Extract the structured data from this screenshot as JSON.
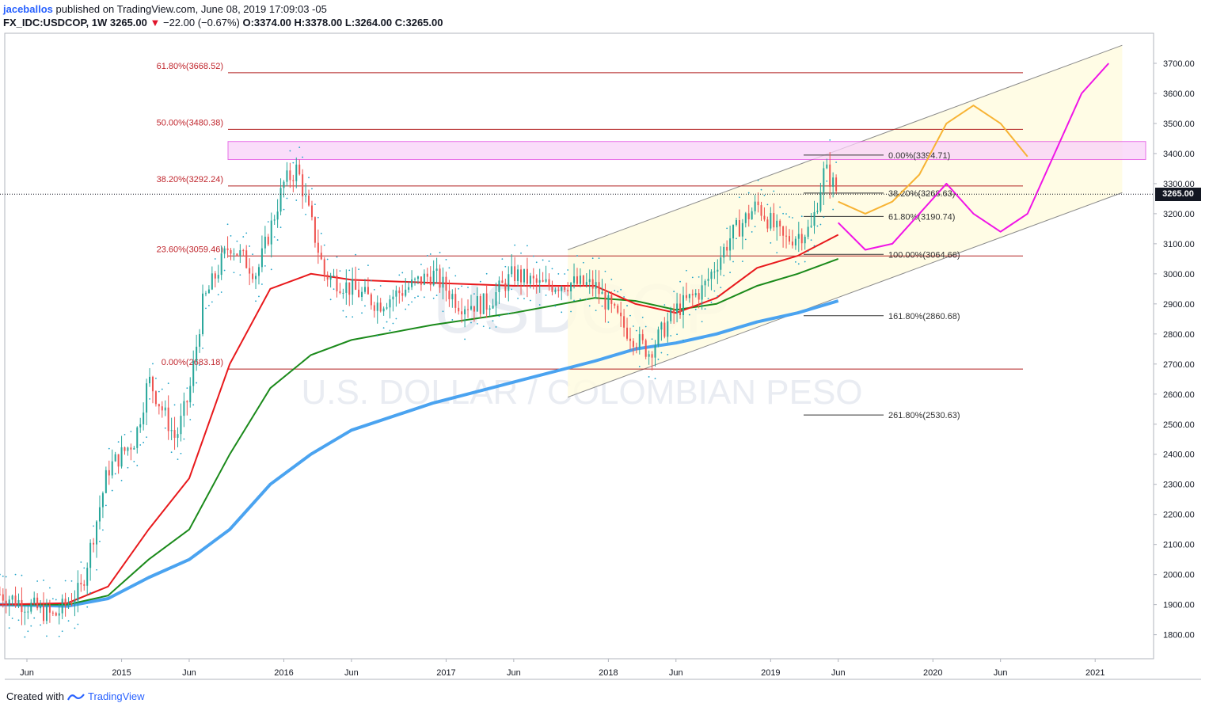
{
  "header": {
    "author": "jaceballos",
    "published": "published on TradingView.com, June 08, 2019 17:09:03 -05",
    "symbol": "FX_IDC:USDCOP, 1W",
    "last": "3265.00",
    "change": "−22.00 (−0.67%)",
    "ohlc_o": "O:3374.00",
    "ohlc_h": "H:3378.00",
    "ohlc_l": "L:3264.00",
    "ohlc_c": "C:3265.00"
  },
  "footer": {
    "created_with": "Created with",
    "brand": "TradingView"
  },
  "watermark": {
    "symbol": "USDCOP",
    "description": "U.S. DOLLAR / COLOMBIAN PESO"
  },
  "last_price_tag": "3265.00",
  "colors": {
    "candle_up": "#26a69a",
    "candle_down": "#ef5350",
    "ma_fast": "#e8191c",
    "ma_mid": "#1b8a1b",
    "ma_slow": "#4aa3f0",
    "fib_line": "#b22222",
    "channel_fill": "#fffbe0",
    "resistance_box": "#f9d2f9",
    "projection_orange": "#f7b334",
    "projection_magenta": "#f014e6"
  },
  "chart_data": {
    "type": "candlestick",
    "ylim": [
      1720,
      3800
    ],
    "yticks": [
      1800,
      1900,
      2000,
      2100,
      2200,
      2300,
      2400,
      2500,
      2600,
      2700,
      2800,
      2900,
      3000,
      3100,
      3200,
      3300,
      3400,
      3500,
      3600,
      3700
    ],
    "xticks": [
      {
        "label": "Jun",
        "date": "2014-06"
      },
      {
        "label": "2015",
        "date": "2015-01"
      },
      {
        "label": "Jun",
        "date": "2015-06"
      },
      {
        "label": "2016",
        "date": "2016-01"
      },
      {
        "label": "Jun",
        "date": "2016-06"
      },
      {
        "label": "2017",
        "date": "2017-01"
      },
      {
        "label": "Jun",
        "date": "2017-06"
      },
      {
        "label": "2018",
        "date": "2018-01"
      },
      {
        "label": "Jun",
        "date": "2018-06"
      },
      {
        "label": "2019",
        "date": "2019-01"
      },
      {
        "label": "Jun",
        "date": "2019-06"
      },
      {
        "label": "2020",
        "date": "2020-01"
      },
      {
        "label": "Jun",
        "date": "2020-06"
      },
      {
        "label": "2021",
        "date": "2021-01"
      }
    ],
    "price_path": [
      [
        "2014-04",
        1935
      ],
      [
        "2014-06",
        1900
      ],
      [
        "2014-08",
        1860
      ],
      [
        "2014-10",
        1950
      ],
      [
        "2014-12",
        2350
      ],
      [
        "2015-02",
        2450
      ],
      [
        "2015-03",
        2650
      ],
      [
        "2015-05",
        2450
      ],
      [
        "2015-06",
        2600
      ],
      [
        "2015-07",
        2900
      ],
      [
        "2015-09",
        3100
      ],
      [
        "2015-11",
        3000
      ],
      [
        "2016-01",
        3300
      ],
      [
        "2016-02",
        3350
      ],
      [
        "2016-04",
        3000
      ],
      [
        "2016-06",
        2950
      ],
      [
        "2016-08",
        2900
      ],
      [
        "2016-10",
        2950
      ],
      [
        "2016-12",
        3000
      ],
      [
        "2017-02",
        2900
      ],
      [
        "2017-04",
        2900
      ],
      [
        "2017-06",
        3000
      ],
      [
        "2017-08",
        2960
      ],
      [
        "2017-10",
        2970
      ],
      [
        "2017-12",
        2960
      ],
      [
        "2018-02",
        2830
      ],
      [
        "2018-04",
        2740
      ],
      [
        "2018-06",
        2880
      ],
      [
        "2018-08",
        2950
      ],
      [
        "2018-10",
        3120
      ],
      [
        "2018-12",
        3230
      ],
      [
        "2019-02",
        3110
      ],
      [
        "2019-04",
        3150
      ],
      [
        "2019-05",
        3350
      ],
      [
        "2019-06",
        3265
      ]
    ],
    "fib_retracement_major": [
      {
        "label": "61.80%(3668.52)",
        "price": 3668.52
      },
      {
        "label": "50.00%(3480.38)",
        "price": 3480.38
      },
      {
        "label": "38.20%(3292.24)",
        "price": 3292.24
      },
      {
        "label": "23.60%(3059.46)",
        "price": 3059.46
      },
      {
        "label": "0.00%(2683.18)",
        "price": 2683.18
      }
    ],
    "fib_extension_minor": [
      {
        "label": "0.00%(3394.71)",
        "price": 3394.71
      },
      {
        "label": "38.20%(3268.63)",
        "price": 3268.63
      },
      {
        "label": "61.80%(3190.74)",
        "price": 3190.74
      },
      {
        "label": "100.00%(3064.66)",
        "price": 3064.66
      },
      {
        "label": "161.80%(2860.68)",
        "price": 2860.68
      },
      {
        "label": "261.80%(2530.63)",
        "price": 2530.63
      }
    ],
    "resistance_zone": [
      3380,
      3440
    ],
    "ma_fast": [
      [
        "2014-04",
        1900
      ],
      [
        "2014-09",
        1905
      ],
      [
        "2014-12",
        1960
      ],
      [
        "2015-03",
        2150
      ],
      [
        "2015-06",
        2320
      ],
      [
        "2015-09",
        2700
      ],
      [
        "2015-12",
        2950
      ],
      [
        "2016-03",
        3000
      ],
      [
        "2016-06",
        2980
      ],
      [
        "2016-12",
        2970
      ],
      [
        "2017-06",
        2960
      ],
      [
        "2017-12",
        2960
      ],
      [
        "2018-03",
        2900
      ],
      [
        "2018-06",
        2870
      ],
      [
        "2018-09",
        2920
      ],
      [
        "2018-12",
        3020
      ],
      [
        "2019-03",
        3060
      ],
      [
        "2019-06",
        3130
      ]
    ],
    "ma_mid": [
      [
        "2014-04",
        1900
      ],
      [
        "2014-09",
        1900
      ],
      [
        "2014-12",
        1930
      ],
      [
        "2015-03",
        2050
      ],
      [
        "2015-06",
        2150
      ],
      [
        "2015-09",
        2400
      ],
      [
        "2015-12",
        2620
      ],
      [
        "2016-03",
        2730
      ],
      [
        "2016-06",
        2780
      ],
      [
        "2016-12",
        2830
      ],
      [
        "2017-06",
        2870
      ],
      [
        "2017-12",
        2920
      ],
      [
        "2018-03",
        2910
      ],
      [
        "2018-06",
        2880
      ],
      [
        "2018-09",
        2900
      ],
      [
        "2018-12",
        2960
      ],
      [
        "2019-03",
        3000
      ],
      [
        "2019-06",
        3050
      ]
    ],
    "ma_slow": [
      [
        "2014-04",
        1900
      ],
      [
        "2014-09",
        1895
      ],
      [
        "2014-12",
        1920
      ],
      [
        "2015-03",
        1990
      ],
      [
        "2015-06",
        2050
      ],
      [
        "2015-09",
        2150
      ],
      [
        "2015-12",
        2300
      ],
      [
        "2016-03",
        2400
      ],
      [
        "2016-06",
        2480
      ],
      [
        "2016-12",
        2570
      ],
      [
        "2017-06",
        2640
      ],
      [
        "2017-12",
        2710
      ],
      [
        "2018-03",
        2750
      ],
      [
        "2018-06",
        2770
      ],
      [
        "2018-09",
        2800
      ],
      [
        "2018-12",
        2840
      ],
      [
        "2019-03",
        2870
      ],
      [
        "2019-06",
        2910
      ]
    ],
    "channel": {
      "upper": [
        [
          "2017-10",
          3080
        ],
        [
          "2021-03",
          3760
        ]
      ],
      "lower": [
        [
          "2017-10",
          2590
        ],
        [
          "2021-03",
          3270
        ]
      ]
    },
    "projection_orange": [
      [
        "2019-06",
        3240
      ],
      [
        "2019-08",
        3200
      ],
      [
        "2019-10",
        3240
      ],
      [
        "2019-12",
        3330
      ],
      [
        "2020-02",
        3500
      ],
      [
        "2020-04",
        3560
      ],
      [
        "2020-06",
        3500
      ],
      [
        "2020-08",
        3390
      ]
    ],
    "projection_magenta": [
      [
        "2019-06",
        3170
      ],
      [
        "2019-08",
        3080
      ],
      [
        "2019-10",
        3100
      ],
      [
        "2019-12",
        3200
      ],
      [
        "2020-02",
        3300
      ],
      [
        "2020-04",
        3200
      ],
      [
        "2020-06",
        3140
      ],
      [
        "2020-08",
        3200
      ],
      [
        "2020-10",
        3400
      ],
      [
        "2020-12",
        3600
      ],
      [
        "2021-02",
        3700
      ]
    ]
  }
}
